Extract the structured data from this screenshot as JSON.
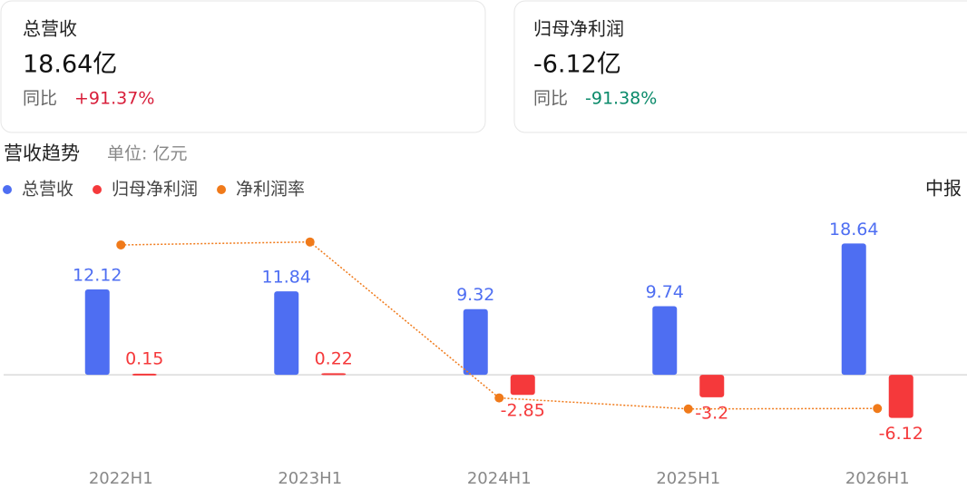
{
  "cards": [
    {
      "label": "总营收",
      "value": "18.64亿",
      "yoy_label": "同比",
      "yoy": "+91.37%",
      "yoy_color": "#d81e3a"
    },
    {
      "label": "归母净利润",
      "value": "-6.12亿",
      "yoy_label": "同比",
      "yoy": "-91.38%",
      "yoy_color": "#0a8a6a"
    }
  ],
  "chart_data": {
    "type": "bar",
    "title": "营收趋势",
    "subtitle": "单位: 亿元",
    "period": "中报",
    "categories": [
      "2022H1",
      "2023H1",
      "2024H1",
      "2025H1",
      "2026H1"
    ],
    "series": [
      {
        "name": "总营收",
        "type": "bar",
        "color": "#4e6ef2",
        "values": [
          12.12,
          11.84,
          9.32,
          9.74,
          18.64
        ]
      },
      {
        "name": "归母净利润",
        "type": "bar",
        "color": "#f5393b",
        "values": [
          0.15,
          0.22,
          -2.85,
          -3.2,
          -6.12
        ]
      },
      {
        "name": "净利润率",
        "type": "line",
        "axis": "y2",
        "color": "#f07a1a",
        "values": [
          1.24,
          1.86,
          -30.6,
          -32.9,
          -32.8
        ]
      }
    ],
    "ylim": [
      -11.2,
      22.3
    ],
    "y2lim": [
      -42.2,
      6.9
    ]
  }
}
